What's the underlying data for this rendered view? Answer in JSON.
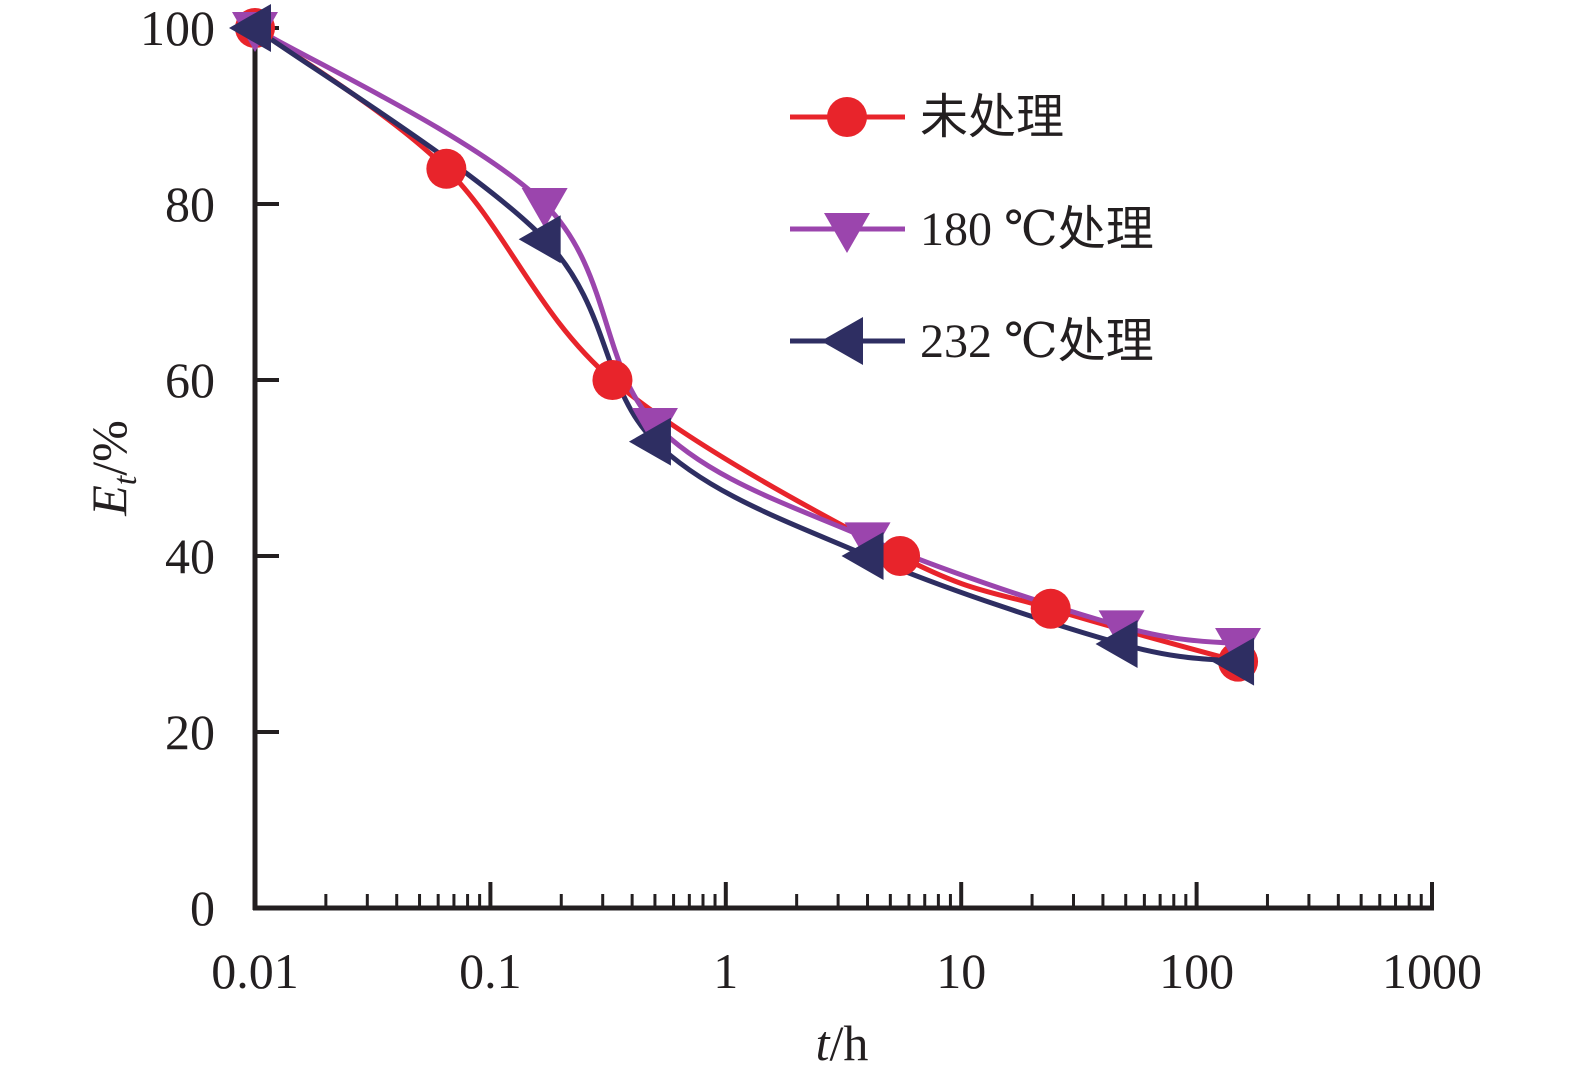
{
  "chart_data": {
    "type": "line",
    "x_scale": "log",
    "xlim": [
      0.01,
      1000
    ],
    "ylim": [
      0,
      100
    ],
    "x_ticks": [
      0.01,
      0.1,
      1,
      10,
      100,
      1000
    ],
    "x_tick_labels": [
      "0.01",
      "0.1",
      "1",
      "10",
      "100",
      "1000"
    ],
    "y_ticks": [
      0,
      20,
      40,
      60,
      80,
      100
    ],
    "y_tick_labels": [
      "0",
      "20",
      "40",
      "60",
      "80",
      "100"
    ],
    "xlabel": {
      "var": "t",
      "unit": "/h"
    },
    "ylabel": {
      "var": "E",
      "sub": "t",
      "unit": "/%"
    },
    "grid": false,
    "legend_position": "top-right",
    "series": [
      {
        "name": "未处理",
        "color": "#e8242b",
        "marker": "circle",
        "x": [
          0.01,
          0.065,
          0.33,
          5.5,
          24,
          150
        ],
        "y": [
          100,
          84,
          60,
          40,
          34,
          28
        ]
      },
      {
        "name": "180 ℃处理",
        "color": "#9b45ad",
        "marker": "triangle-down",
        "x": [
          0.01,
          0.17,
          0.5,
          4,
          48,
          150
        ],
        "y": [
          100,
          80,
          55,
          42,
          32,
          30
        ]
      },
      {
        "name": "232 ℃处理",
        "color": "#2e2e62",
        "marker": "triangle-left",
        "x": [
          0.01,
          0.17,
          0.5,
          4,
          48,
          150
        ],
        "y": [
          100,
          76,
          53,
          40,
          30,
          28
        ]
      }
    ]
  }
}
